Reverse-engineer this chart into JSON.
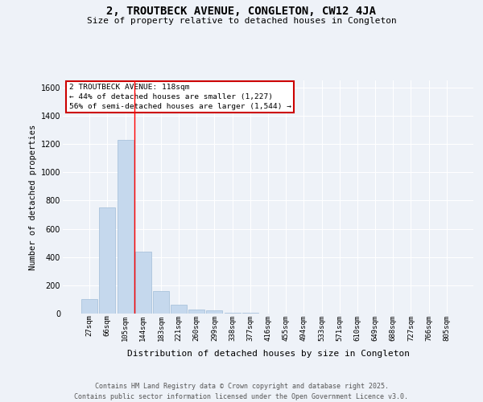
{
  "title": "2, TROUTBECK AVENUE, CONGLETON, CW12 4JA",
  "subtitle": "Size of property relative to detached houses in Congleton",
  "xlabel": "Distribution of detached houses by size in Congleton",
  "ylabel": "Number of detached properties",
  "categories": [
    "27sqm",
    "66sqm",
    "105sqm",
    "144sqm",
    "183sqm",
    "221sqm",
    "260sqm",
    "299sqm",
    "338sqm",
    "377sqm",
    "416sqm",
    "455sqm",
    "494sqm",
    "533sqm",
    "571sqm",
    "610sqm",
    "649sqm",
    "688sqm",
    "727sqm",
    "766sqm",
    "805sqm"
  ],
  "values": [
    100,
    750,
    1227,
    440,
    160,
    60,
    30,
    20,
    8,
    4,
    2,
    1,
    0,
    0,
    0,
    0,
    0,
    0,
    0,
    0,
    0
  ],
  "bar_color": "#c5d8ed",
  "bar_edge_color": "#a0bdd8",
  "red_line_index": 2.5,
  "annotation_text": "2 TROUTBECK AVENUE: 118sqm\n← 44% of detached houses are smaller (1,227)\n56% of semi-detached houses are larger (1,544) →",
  "annotation_box_color": "#ffffff",
  "annotation_box_edge_color": "#cc0000",
  "ylim": [
    0,
    1650
  ],
  "yticks": [
    0,
    200,
    400,
    600,
    800,
    1000,
    1200,
    1400,
    1600
  ],
  "background_color": "#eef2f8",
  "grid_color": "#ffffff",
  "footer_line1": "Contains HM Land Registry data © Crown copyright and database right 2025.",
  "footer_line2": "Contains public sector information licensed under the Open Government Licence v3.0."
}
